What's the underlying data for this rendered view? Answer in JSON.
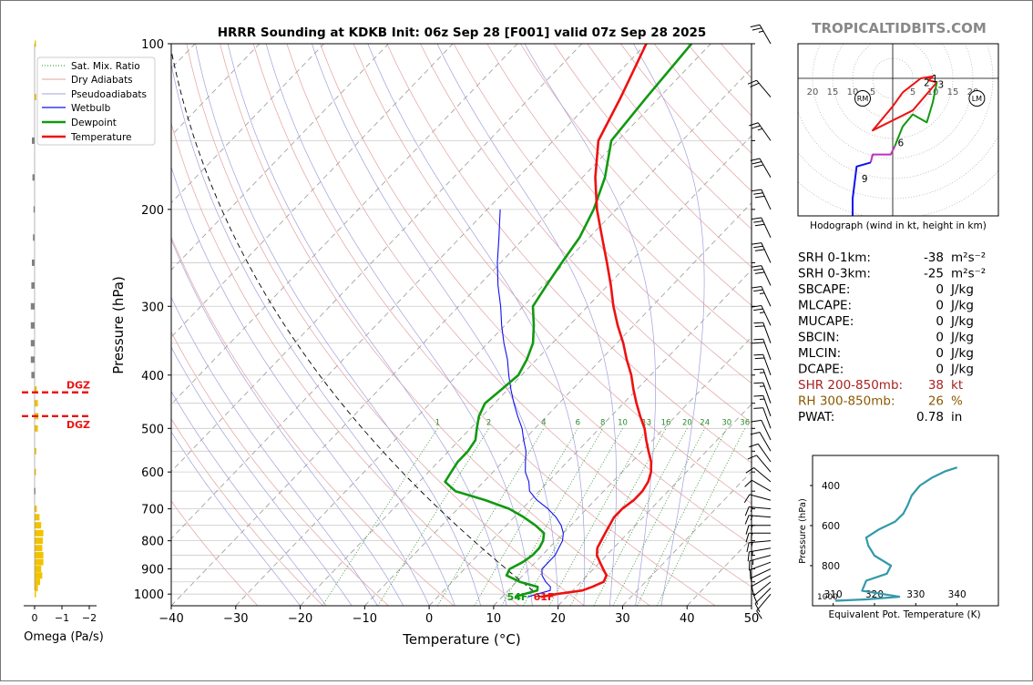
{
  "site": "TROPICALTIDBITS.COM",
  "title": "HRRR Sounding at KDKB Init: 06z Sep 28 [F001] valid 07z Sep 28 2025",
  "colors": {
    "temperature": "#ee1111",
    "dewpoint": "#119911",
    "wetbulb": "#1111ee",
    "parcel": "#000000",
    "dgz": "#ee1111",
    "omega_down": "#f2c200",
    "omega_up": "#808080",
    "theta_e": "#3399aa",
    "grid": "#cccccc",
    "site": "#888888",
    "shr": "#aa2222",
    "rh": "#8a5a00"
  },
  "chart_data": {
    "type": "line",
    "skewt": {
      "xlabel": "Temperature (°C)",
      "ylabel": "Pressure (hPa)",
      "xlim": [
        -40,
        50
      ],
      "ylim": [
        1050,
        100
      ],
      "x_ticks": [
        -40,
        -30,
        -20,
        -10,
        0,
        10,
        20,
        30,
        40,
        50
      ],
      "x_tick_labels": [
        "−40",
        "−30",
        "−20",
        "−10",
        "0",
        "10",
        "20",
        "30",
        "40",
        "50"
      ],
      "p_ticks": [
        100,
        200,
        300,
        400,
        500,
        600,
        700,
        800,
        900,
        1000
      ],
      "p_minor": [
        150,
        250,
        350,
        450,
        550,
        650,
        750,
        850,
        950
      ],
      "legend": [
        "Sat. Mix. Ratio",
        "Dry Adiabats",
        "Pseudoadiabats",
        "Wetbulb",
        "Dewpoint",
        "Temperature"
      ],
      "mixing_ratio_labels": [
        "1",
        "2",
        "4",
        "6",
        "8",
        "10",
        "13",
        "16",
        "20",
        "24",
        "30",
        "36"
      ],
      "surface_temp_label": "61F",
      "surface_dew_label": "54F",
      "dgz_label": "DGZ",
      "series": [
        {
          "name": "Temperature",
          "p": [
            1012,
            1000,
            985,
            970,
            950,
            925,
            900,
            875,
            850,
            825,
            800,
            775,
            750,
            725,
            700,
            675,
            650,
            625,
            600,
            575,
            550,
            525,
            500,
            475,
            450,
            425,
            400,
            375,
            350,
            325,
            300,
            275,
            250,
            225,
            200,
            175,
            150,
            125,
            100
          ],
          "t": [
            16,
            18,
            21.5,
            22.5,
            23.5,
            23,
            21.5,
            20,
            18.5,
            17.5,
            17,
            16.5,
            16,
            15.5,
            15.5,
            16,
            16,
            15.5,
            14.5,
            13,
            11,
            9,
            7,
            4.5,
            2,
            -0.5,
            -3,
            -6,
            -9,
            -12.5,
            -16,
            -19.5,
            -23.5,
            -28,
            -33,
            -38,
            -43,
            -46,
            -50
          ]
        },
        {
          "name": "Dewpoint",
          "p": [
            1012,
            1000,
            985,
            970,
            950,
            925,
            900,
            875,
            850,
            825,
            800,
            775,
            750,
            725,
            700,
            675,
            650,
            625,
            600,
            575,
            550,
            525,
            500,
            475,
            450,
            425,
            400,
            375,
            350,
            325,
            300,
            275,
            250,
            225,
            200,
            175,
            150,
            125,
            100
          ],
          "t": [
            12,
            13,
            14.5,
            14,
            10.5,
            7.5,
            7,
            8,
            8.5,
            8.5,
            8,
            7,
            4.5,
            1.5,
            -2,
            -7,
            -13,
            -16,
            -16.5,
            -17,
            -17,
            -17.5,
            -19,
            -20.5,
            -21.5,
            -21,
            -20.5,
            -21.5,
            -23,
            -25.5,
            -28.5,
            -29.5,
            -30.5,
            -31.5,
            -33.5,
            -36.5,
            -41,
            -42,
            -43
          ]
        },
        {
          "name": "Wetbulb",
          "p": [
            1012,
            1000,
            985,
            970,
            950,
            925,
            900,
            875,
            850,
            825,
            800,
            775,
            750,
            725,
            700,
            675,
            650,
            625,
            600,
            575,
            550,
            525,
            500,
            475,
            450,
            425,
            400,
            375,
            350,
            325,
            300,
            275,
            250,
            225,
            200
          ],
          "t": [
            14,
            15,
            16.5,
            16,
            14.5,
            13,
            12,
            12,
            12,
            11.5,
            11,
            10,
            8.5,
            6.5,
            4,
            1,
            -1.5,
            -3,
            -5,
            -6.5,
            -8,
            -10,
            -12,
            -14.5,
            -17,
            -19.5,
            -22,
            -24.5,
            -27.5,
            -30.5,
            -33.5,
            -37,
            -40.5,
            -44,
            -48
          ]
        }
      ]
    },
    "omega": {
      "xlabel": "Omega (Pa/s)",
      "x_ticks": [
        0,
        -1,
        -2
      ],
      "x_tick_labels": [
        "0",
        "−1",
        "−2"
      ],
      "values": [
        {
          "p": 1000,
          "v": 0.02
        },
        {
          "p": 975,
          "v": 0.06
        },
        {
          "p": 950,
          "v": 0.1
        },
        {
          "p": 925,
          "v": 0.14
        },
        {
          "p": 900,
          "v": 0.12
        },
        {
          "p": 875,
          "v": 0.16
        },
        {
          "p": 850,
          "v": 0.16
        },
        {
          "p": 825,
          "v": 0.14
        },
        {
          "p": 800,
          "v": 0.15
        },
        {
          "p": 775,
          "v": 0.16
        },
        {
          "p": 750,
          "v": 0.12
        },
        {
          "p": 725,
          "v": 0.09
        },
        {
          "p": 700,
          "v": 0.04
        },
        {
          "p": 650,
          "v": -0.01
        },
        {
          "p": 600,
          "v": 0.02
        },
        {
          "p": 550,
          "v": 0.03
        },
        {
          "p": 500,
          "v": 0.06
        },
        {
          "p": 475,
          "v": 0.07
        },
        {
          "p": 450,
          "v": 0.06
        },
        {
          "p": 425,
          "v": 0.04
        },
        {
          "p": 400,
          "v": -0.06
        },
        {
          "p": 375,
          "v": -0.07
        },
        {
          "p": 350,
          "v": -0.07
        },
        {
          "p": 325,
          "v": -0.07
        },
        {
          "p": 300,
          "v": -0.07
        },
        {
          "p": 275,
          "v": -0.06
        },
        {
          "p": 250,
          "v": -0.05
        },
        {
          "p": 225,
          "v": -0.03
        },
        {
          "p": 200,
          "v": -0.02
        },
        {
          "p": 175,
          "v": -0.04
        },
        {
          "p": 150,
          "v": -0.05
        },
        {
          "p": 125,
          "v": 0.03
        },
        {
          "p": 100,
          "v": 0.02
        }
      ],
      "dgz_p": [
        430,
        475
      ]
    },
    "hodograph": {
      "caption": "Hodograph (wind in kt, height in km)",
      "ring_labels_left": [
        "20",
        "15",
        "10",
        "5"
      ],
      "ring_labels_right": [
        "5",
        "10",
        "15",
        "20"
      ],
      "rings_kt": [
        5,
        10,
        15,
        20,
        25,
        30,
        35
      ],
      "rm": {
        "u": -7.5,
        "v": -5
      },
      "lm": {
        "u": 21,
        "v": -5
      },
      "segments": [
        {
          "color": "#ee1111",
          "points": [
            [
              2.5,
              -3.5
            ],
            [
              7,
              0
            ],
            [
              10,
              0.5
            ],
            [
              9,
              -0.5
            ],
            [
              11,
              -1
            ],
            [
              5,
              -8
            ],
            [
              -5,
              -13
            ],
            [
              0,
              -7
            ],
            [
              2.5,
              -3.5
            ]
          ]
        },
        {
          "color": "#119911",
          "points": [
            [
              11,
              -1
            ],
            [
              10,
              -6
            ],
            [
              8.5,
              -11
            ],
            [
              5,
              -9
            ],
            [
              2.5,
              -12
            ],
            [
              0.5,
              -17
            ]
          ]
        },
        {
          "color": "#bb33bb",
          "points": [
            [
              0.5,
              -17
            ],
            [
              -0.5,
              -19
            ],
            [
              -2.5,
              -19
            ],
            [
              -5,
              -19
            ],
            [
              -5.5,
              -21
            ]
          ]
        },
        {
          "color": "#1111ee",
          "points": [
            [
              -5.5,
              -21
            ],
            [
              -9,
              -22
            ],
            [
              -10,
              -30
            ],
            [
              -10,
              -37
            ],
            [
              -7,
              -43
            ],
            [
              -3,
              -41
            ]
          ]
        }
      ],
      "height_labels": [
        {
          "text": "1",
          "u": 10.5,
          "v": 0
        },
        {
          "text": "2",
          "u": 8.5,
          "v": -1
        },
        {
          "text": "3",
          "u": 12,
          "v": -1.5
        },
        {
          "text": "6",
          "u": 2,
          "v": -16
        },
        {
          "text": "9",
          "u": -7,
          "v": -25
        }
      ],
      "rm_label": "RM",
      "lm_label": "LM"
    },
    "theta_e": {
      "xlabel": "Equivalent Pot. Temperature (K)",
      "ylabel": "Pressure (hPa)",
      "x_ticks": [
        310,
        320,
        330,
        340
      ],
      "p_ticks": [
        400,
        600,
        800
      ],
      "p_bottom_label": "1000",
      "xlim": [
        305,
        350
      ],
      "values": [
        {
          "p": 975,
          "v": 310.5
        },
        {
          "p": 968,
          "v": 318
        },
        {
          "p": 955,
          "v": 326
        },
        {
          "p": 925,
          "v": 317
        },
        {
          "p": 875,
          "v": 318
        },
        {
          "p": 840,
          "v": 323
        },
        {
          "p": 800,
          "v": 324
        },
        {
          "p": 750,
          "v": 320
        },
        {
          "p": 700,
          "v": 318.5
        },
        {
          "p": 660,
          "v": 318
        },
        {
          "p": 620,
          "v": 321
        },
        {
          "p": 580,
          "v": 325
        },
        {
          "p": 540,
          "v": 327
        },
        {
          "p": 500,
          "v": 328
        },
        {
          "p": 450,
          "v": 329
        },
        {
          "p": 400,
          "v": 331
        },
        {
          "p": 360,
          "v": 334
        },
        {
          "p": 330,
          "v": 337
        },
        {
          "p": 310,
          "v": 340
        }
      ]
    }
  },
  "indices": [
    {
      "label": "SRH 0-1km:",
      "value": "-38",
      "unit": "m²s⁻²",
      "kind": "normal"
    },
    {
      "label": "SRH 0-3km:",
      "value": "-25",
      "unit": "m²s⁻²",
      "kind": "normal"
    },
    {
      "label": "SBCAPE:",
      "value": "0",
      "unit": "J/kg",
      "kind": "normal"
    },
    {
      "label": "MLCAPE:",
      "value": "0",
      "unit": "J/kg",
      "kind": "normal"
    },
    {
      "label": "MUCAPE:",
      "value": "0",
      "unit": "J/kg",
      "kind": "normal"
    },
    {
      "label": "SBCIN:",
      "value": "0",
      "unit": "J/kg",
      "kind": "normal"
    },
    {
      "label": "MLCIN:",
      "value": "0",
      "unit": "J/kg",
      "kind": "normal"
    },
    {
      "label": "DCAPE:",
      "value": "0",
      "unit": "J/kg",
      "kind": "normal"
    },
    {
      "label": "SHR 200-850mb:",
      "value": "38",
      "unit": "kt",
      "kind": "shr"
    },
    {
      "label": "RH 300-850mb:",
      "value": "26",
      "unit": "%",
      "kind": "rh"
    },
    {
      "label": "PWAT:",
      "value": "0.78",
      "unit": "in",
      "kind": "normal"
    }
  ],
  "wind_barbs": [
    {
      "p": 1000,
      "spd": 10,
      "dir": 220
    },
    {
      "p": 975,
      "spd": 10,
      "dir": 225
    },
    {
      "p": 950,
      "spd": 10,
      "dir": 230
    },
    {
      "p": 925,
      "spd": 10,
      "dir": 240
    },
    {
      "p": 900,
      "spd": 10,
      "dir": 245
    },
    {
      "p": 875,
      "spd": 10,
      "dir": 250
    },
    {
      "p": 850,
      "spd": 15,
      "dir": 255
    },
    {
      "p": 825,
      "spd": 15,
      "dir": 260
    },
    {
      "p": 800,
      "spd": 15,
      "dir": 265
    },
    {
      "p": 775,
      "spd": 15,
      "dir": 270
    },
    {
      "p": 750,
      "spd": 15,
      "dir": 270
    },
    {
      "p": 725,
      "spd": 15,
      "dir": 275
    },
    {
      "p": 700,
      "spd": 15,
      "dir": 275
    },
    {
      "p": 675,
      "spd": 10,
      "dir": 285
    },
    {
      "p": 650,
      "spd": 10,
      "dir": 300
    },
    {
      "p": 625,
      "spd": 10,
      "dir": 310
    },
    {
      "p": 600,
      "spd": 10,
      "dir": 320
    },
    {
      "p": 575,
      "spd": 10,
      "dir": 325
    },
    {
      "p": 550,
      "spd": 10,
      "dir": 330
    },
    {
      "p": 525,
      "spd": 10,
      "dir": 335
    },
    {
      "p": 500,
      "spd": 10,
      "dir": 340
    },
    {
      "p": 475,
      "spd": 15,
      "dir": 340
    },
    {
      "p": 450,
      "spd": 15,
      "dir": 340
    },
    {
      "p": 425,
      "spd": 15,
      "dir": 340
    },
    {
      "p": 400,
      "spd": 20,
      "dir": 340
    },
    {
      "p": 375,
      "spd": 20,
      "dir": 340
    },
    {
      "p": 350,
      "spd": 20,
      "dir": 340
    },
    {
      "p": 325,
      "spd": 25,
      "dir": 335
    },
    {
      "p": 300,
      "spd": 25,
      "dir": 335
    },
    {
      "p": 275,
      "spd": 30,
      "dir": 335
    },
    {
      "p": 250,
      "spd": 30,
      "dir": 335
    },
    {
      "p": 225,
      "spd": 30,
      "dir": 335
    },
    {
      "p": 200,
      "spd": 30,
      "dir": 335
    },
    {
      "p": 175,
      "spd": 30,
      "dir": 330
    },
    {
      "p": 150,
      "spd": 25,
      "dir": 325
    },
    {
      "p": 125,
      "spd": 20,
      "dir": 320
    },
    {
      "p": 100,
      "spd": 25,
      "dir": 330
    }
  ]
}
